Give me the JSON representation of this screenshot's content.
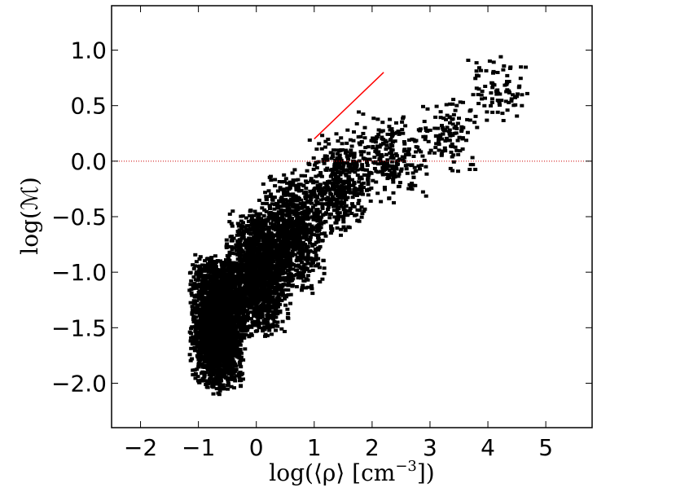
{
  "chart_data": {
    "type": "scatter",
    "title": "",
    "xlabel": "log(⟨ρ⟩ [cm",
    "xlabel_sup": "−3",
    "xlabel_close": "])",
    "ylabel": "log(ℳ)",
    "xlim": [
      -2.5,
      5.8
    ],
    "ylim": [
      -2.4,
      1.4
    ],
    "xticks": [
      -2,
      -1,
      0,
      1,
      2,
      3,
      4,
      5
    ],
    "xtick_labels": [
      "−2",
      "−1",
      "0",
      "1",
      "2",
      "3",
      "4",
      "5"
    ],
    "yticks": [
      -2.0,
      -1.5,
      -1.0,
      -0.5,
      0.0,
      0.5,
      1.0
    ],
    "ytick_labels": [
      "−2.0",
      "−1.5",
      "−1.0",
      "−0.5",
      "0.0",
      "0.5",
      "1.0"
    ],
    "grid": false,
    "point_color": "#000000",
    "reference_line": {
      "color": "#ff0000",
      "x": [
        1.0,
        2.2
      ],
      "y": [
        0.2,
        0.8
      ]
    },
    "horizontal_line": {
      "color": "#cc0000",
      "style": "dotted",
      "y": 0.0
    },
    "density_cloud": [
      {
        "x0": -1.2,
        "x1": -0.2,
        "y0": -2.1,
        "y1": -0.8,
        "n": 2500
      },
      {
        "x0": -0.6,
        "x1": 0.6,
        "y0": -1.6,
        "y1": -0.4,
        "n": 1500
      },
      {
        "x0": 0.0,
        "x1": 1.2,
        "y0": -1.2,
        "y1": -0.05,
        "n": 900
      },
      {
        "x0": 0.8,
        "x1": 2.0,
        "y0": -0.7,
        "y1": 0.3,
        "n": 450
      },
      {
        "x0": 1.6,
        "x1": 3.0,
        "y0": -0.4,
        "y1": 0.5,
        "n": 250
      },
      {
        "x0": 2.8,
        "x1": 3.8,
        "y0": -0.1,
        "y1": 0.6,
        "n": 120
      },
      {
        "x0": 3.5,
        "x1": 4.7,
        "y0": 0.3,
        "y1": 1.0,
        "n": 90
      }
    ]
  }
}
